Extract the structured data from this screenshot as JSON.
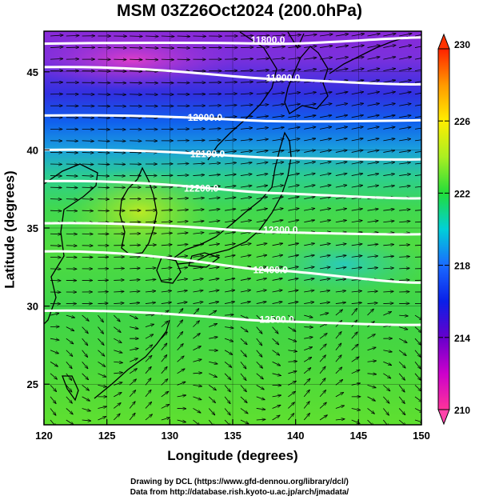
{
  "title": "MSM 03Z26Oct2024 (200.0hPa)",
  "xlabel": "Longitude (degrees)",
  "ylabel": "Latitude (degrees)",
  "credit_line1": "Drawing by DCL (https://www.gfd-dennou.org/library/dcl/)",
  "credit_line2": "Data from http://database.rish.kyoto-u.ac.jp/arch/jmadata/",
  "map": {
    "x_ticks": [
      {
        "value": 120,
        "label": "120"
      },
      {
        "value": 125,
        "label": "125"
      },
      {
        "value": 130,
        "label": "130"
      },
      {
        "value": 135,
        "label": "135"
      },
      {
        "value": 140,
        "label": "140"
      },
      {
        "value": 145,
        "label": "145"
      },
      {
        "value": 150,
        "label": "150"
      }
    ],
    "y_ticks": [
      {
        "value": 25,
        "label": "25"
      },
      {
        "value": 30,
        "label": "30"
      },
      {
        "value": 35,
        "label": "35"
      },
      {
        "value": 40,
        "label": "40"
      },
      {
        "value": 45,
        "label": "45"
      }
    ],
    "xlim": [
      120,
      150
    ],
    "ylim": [
      22.4,
      47.6
    ],
    "contours": [
      {
        "label": "11800.0",
        "label_lon": 137.8,
        "lat0": 46.8,
        "lat1": 47.2
      },
      {
        "label": "11900.0",
        "label_lon": 139.0,
        "lat0": 45.3,
        "lat1": 44.2
      },
      {
        "label": "12000.0",
        "label_lon": 132.8,
        "lat0": 42.2,
        "lat1": 41.9
      },
      {
        "label": "12100.0",
        "label_lon": 133.0,
        "lat0": 40.0,
        "lat1": 39.4
      },
      {
        "label": "12200.0",
        "label_lon": 132.5,
        "lat0": 38.0,
        "lat1": 36.9
      },
      {
        "label": "12300.0",
        "label_lon": 138.8,
        "lat0": 35.3,
        "lat1": 34.6
      },
      {
        "label": "12400.0",
        "label_lon": 138.0,
        "lat0": 33.5,
        "lat1": 31.5
      },
      {
        "label": "12500.0",
        "label_lon": 138.5,
        "lat0": 29.7,
        "lat1": 28.8
      }
    ]
  },
  "colorbar": {
    "min": 210,
    "max": 230,
    "ticks": [
      {
        "value": 210,
        "label": "210"
      },
      {
        "value": 214,
        "label": "214"
      },
      {
        "value": 218,
        "label": "218"
      },
      {
        "value": 222,
        "label": "222"
      },
      {
        "value": 226,
        "label": "226"
      },
      {
        "value": 230,
        "label": "230"
      }
    ],
    "stops": [
      "#ff3399",
      "#cc00cc",
      "#6600cc",
      "#0a1fe8",
      "#1a6bff",
      "#00d0d8",
      "#22dd3a",
      "#aaee22",
      "#ffee00",
      "#ff9900",
      "#ff2200"
    ]
  }
}
